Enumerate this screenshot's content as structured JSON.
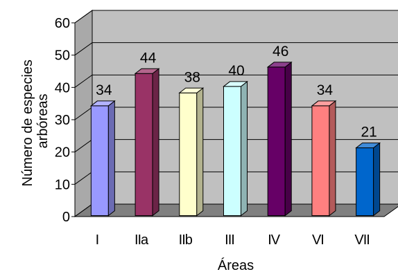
{
  "chart_data": {
    "type": "bar",
    "categories": [
      "I",
      "IIa",
      "IIb",
      "III",
      "IV",
      "VI",
      "VII"
    ],
    "values": [
      34,
      44,
      38,
      40,
      46,
      34,
      21
    ],
    "xlabel": "Áreas",
    "ylabel_lines": [
      "Número de especies",
      "arbóreas"
    ],
    "ylim": [
      0,
      60
    ],
    "yticks": [
      0,
      10,
      20,
      30,
      40,
      50,
      60
    ],
    "grid": true,
    "style": "3d-column",
    "colors": {
      "I": "#9999ff",
      "IIa": "#993366",
      "IIb": "#ffffcc",
      "III": "#ccffff",
      "IV": "#660066",
      "VI": "#ff8080",
      "VII": "#0066cc",
      "wall": "#c0c0c0",
      "floor": "#808080"
    }
  }
}
